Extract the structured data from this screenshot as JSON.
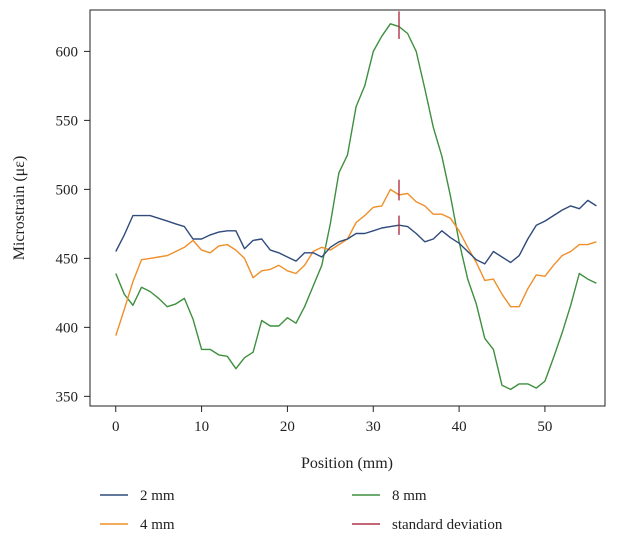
{
  "chart_data": {
    "type": "line",
    "title": "",
    "xlabel": "Position (mm)",
    "ylabel": "Microstrain (με)",
    "xlim": [
      -3,
      57
    ],
    "ylim": [
      343,
      630
    ],
    "xticks": [
      0,
      10,
      20,
      30,
      40,
      50
    ],
    "yticks": [
      350,
      400,
      450,
      500,
      550,
      600
    ],
    "grid": false,
    "legend_position": "bottom",
    "x": [
      0,
      1,
      2,
      3,
      4,
      5,
      6,
      7,
      8,
      9,
      10,
      11,
      12,
      13,
      14,
      15,
      16,
      17,
      18,
      19,
      20,
      21,
      22,
      23,
      24,
      25,
      26,
      27,
      28,
      29,
      30,
      31,
      32,
      33,
      34,
      35,
      36,
      37,
      38,
      39,
      40,
      41,
      42,
      43,
      44,
      45,
      46,
      47,
      48,
      49,
      50,
      51,
      52,
      53,
      54,
      55,
      56
    ],
    "series": [
      {
        "name": "2 mm",
        "color": "#2f4b7c",
        "values": [
          455,
          467,
          481,
          481,
          481,
          479,
          477,
          475,
          473,
          464,
          464,
          467,
          469,
          470,
          470,
          457,
          463,
          464,
          456,
          454,
          451,
          448,
          454,
          454,
          451,
          458,
          462,
          464,
          468,
          468,
          470,
          472,
          473,
          474,
          473,
          468,
          462,
          464,
          470,
          465,
          461,
          455,
          449,
          446,
          455,
          451,
          447,
          452,
          464,
          474,
          477,
          481,
          485,
          488,
          486,
          492,
          488
        ]
      },
      {
        "name": "4 mm",
        "color": "#ef8f2a",
        "values": [
          394,
          413,
          433,
          449,
          450,
          451,
          452,
          455,
          458,
          463,
          456,
          454,
          459,
          460,
          456,
          450,
          436,
          441,
          442,
          445,
          441,
          439,
          445,
          455,
          458,
          456,
          460,
          464,
          476,
          481,
          487,
          488,
          500,
          496,
          497,
          491,
          488,
          482,
          482,
          479,
          470,
          458,
          447,
          434,
          435,
          424,
          415,
          415,
          428,
          438,
          437,
          445,
          452,
          455,
          460,
          460,
          462
        ]
      },
      {
        "name": "8 mm",
        "color": "#3e8f3e",
        "values": [
          439,
          424,
          416,
          429,
          426,
          421,
          415,
          417,
          421,
          406,
          384,
          384,
          380,
          379,
          370,
          378,
          382,
          405,
          401,
          401,
          407,
          403,
          415,
          430,
          445,
          475,
          512,
          525,
          560,
          575,
          600,
          611,
          620,
          618,
          613,
          600,
          573,
          545,
          524,
          495,
          462,
          435,
          417,
          392,
          384,
          358,
          355,
          359,
          359,
          356,
          361,
          378,
          396,
          416,
          439,
          435,
          432
        ]
      }
    ],
    "error_bars": [
      {
        "series": "2 mm",
        "x": 33,
        "low": 467,
        "high": 481
      },
      {
        "series": "4 mm",
        "x": 33,
        "low": 492,
        "high": 507
      },
      {
        "series": "8 mm",
        "x": 33,
        "low": 609,
        "high": 629
      }
    ],
    "error_bar_color": "#b0344a",
    "legend": [
      {
        "label": "2 mm",
        "color": "#2f4b7c"
      },
      {
        "label": "4 mm",
        "color": "#ef8f2a"
      },
      {
        "label": "8 mm",
        "color": "#3e8f3e"
      },
      {
        "label": "standard deviation",
        "color": "#b0344a"
      }
    ]
  }
}
